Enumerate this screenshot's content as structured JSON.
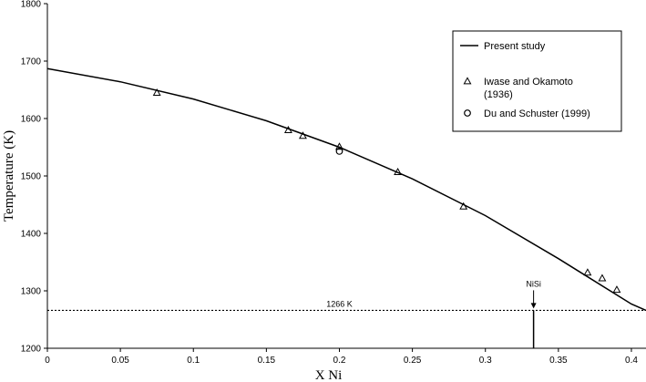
{
  "chart_data": {
    "type": "scatter",
    "xlabel": "X Ni",
    "ylabel": "Temperature (K)",
    "xlim": [
      0,
      0.41
    ],
    "ylim": [
      1200,
      1800
    ],
    "x_ticks": [
      "0",
      "0.05",
      "0.1",
      "0.15",
      "0.2",
      "0.25",
      "0.3",
      "0.35",
      "0.4"
    ],
    "y_ticks": [
      "1200",
      "1300",
      "1400",
      "1500",
      "1600",
      "1700",
      "1800"
    ],
    "grid": false,
    "legend_position": "top-right",
    "series": [
      {
        "name": "Present study",
        "style": "line",
        "x": [
          0,
          0.05,
          0.1,
          0.15,
          0.2,
          0.25,
          0.3,
          0.35,
          0.4,
          0.41
        ],
        "y": [
          1687,
          1664,
          1634,
          1596,
          1550,
          1495,
          1431,
          1356,
          1277,
          1266
        ]
      },
      {
        "name": "Iwase and Okamoto (1936)",
        "legend_lines": [
          "Iwase and Okamoto",
          "(1936)"
        ],
        "style": "triangle",
        "x": [
          0.075,
          0.165,
          0.175,
          0.2,
          0.24,
          0.285,
          0.37,
          0.38,
          0.39
        ],
        "y": [
          1645,
          1580,
          1570,
          1551,
          1507,
          1447,
          1332,
          1322,
          1302
        ]
      },
      {
        "name": "Du and Schuster (1999)",
        "style": "circle",
        "x": [
          0.2
        ],
        "y": [
          1543
        ]
      }
    ],
    "annotations": [
      {
        "type": "hline",
        "y": 1266,
        "label": "1266 K",
        "label_x": 0.2
      },
      {
        "type": "vline",
        "x": 0.333,
        "label": "NiSi",
        "y_top": 1266
      }
    ]
  }
}
